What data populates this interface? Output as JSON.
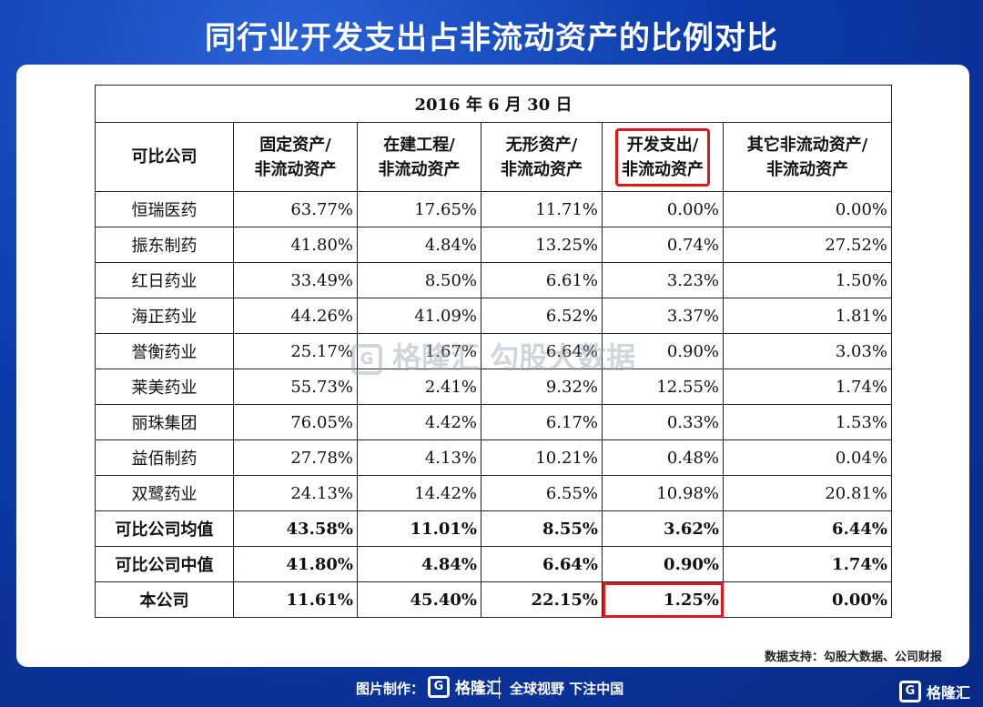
{
  "title": "同行业开发支出占非流动资产的比例对比",
  "table": {
    "date": "2016 年 6 月 30 日",
    "headers": [
      {
        "l1": "可比公司",
        "l2": ""
      },
      {
        "l1": "固定资产/",
        "l2": "非流动资产"
      },
      {
        "l1": "在建工程/",
        "l2": "非流动资产"
      },
      {
        "l1": "无形资产/",
        "l2": "非流动资产"
      },
      {
        "l1": "开发支出/",
        "l2": "非流动资产"
      },
      {
        "l1": "其它非流动资产/",
        "l2": "非流动资产"
      }
    ],
    "rows": [
      [
        "恒瑞医药",
        "63.77%",
        "17.65%",
        "11.71%",
        "0.00%",
        "0.00%"
      ],
      [
        "振东制药",
        "41.80%",
        "4.84%",
        "13.25%",
        "0.74%",
        "27.52%"
      ],
      [
        "红日药业",
        "33.49%",
        "8.50%",
        "6.61%",
        "3.23%",
        "1.50%"
      ],
      [
        "海正药业",
        "44.26%",
        "41.09%",
        "6.52%",
        "3.37%",
        "1.81%"
      ],
      [
        "誉衡药业",
        "25.17%",
        "1.67%",
        "6.64%",
        "0.90%",
        "3.03%"
      ],
      [
        "莱美药业",
        "55.73%",
        "2.41%",
        "9.32%",
        "12.55%",
        "1.74%"
      ],
      [
        "丽珠集团",
        "76.05%",
        "4.42%",
        "6.17%",
        "0.33%",
        "1.53%"
      ],
      [
        "益佰制药",
        "27.78%",
        "4.13%",
        "10.21%",
        "0.48%",
        "0.04%"
      ],
      [
        "双鹭药业",
        "24.13%",
        "14.42%",
        "6.55%",
        "10.98%",
        "20.81%"
      ],
      [
        "可比公司均值",
        "43.58%",
        "11.01%",
        "8.55%",
        "3.62%",
        "6.44%"
      ],
      [
        "可比公司中值",
        "41.80%",
        "4.84%",
        "6.64%",
        "0.90%",
        "1.74%"
      ],
      [
        "本公司",
        "11.61%",
        "45.40%",
        "22.15%",
        "1.25%",
        "0.00%"
      ]
    ],
    "bold_from_row": 9,
    "highlight_color": "#e0181e"
  },
  "source": "数据支持：勾股大数据、公司财报",
  "watermark": {
    "logo": "格隆汇",
    "text": "勾股大数据"
  },
  "footer": {
    "made_by": "图片制作：",
    "logo": "格隆汇",
    "slogan": "全球视野 下注中国"
  },
  "corner_logo": "格隆汇"
}
